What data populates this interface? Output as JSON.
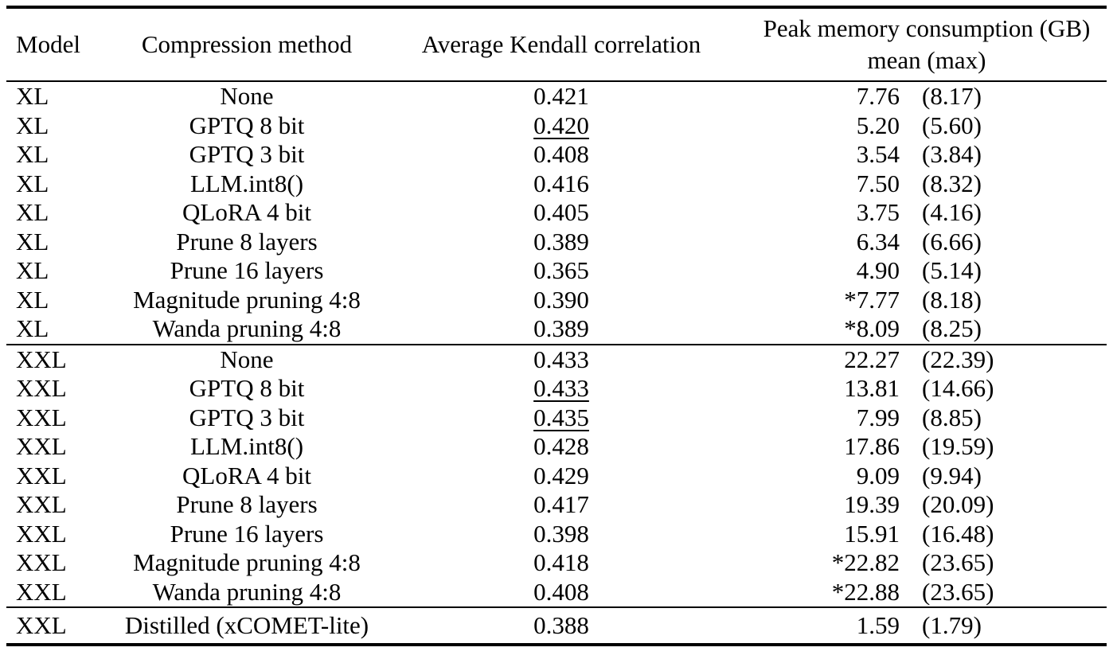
{
  "colors": {
    "text": "#000000",
    "background": "#ffffff",
    "rule": "#000000"
  },
  "table": {
    "headers": {
      "model": "Model",
      "method": "Compression method",
      "kendall": "Average Kendall correlation",
      "memory_line1": "Peak memory consumption (GB)",
      "memory_line2": "mean (max)"
    },
    "sections": [
      {
        "name": "xl",
        "rows": [
          {
            "model": "XL",
            "method": "None",
            "kendall": "0.421",
            "kendall_underlined": false,
            "mem_mean": "7.76",
            "mem_max": "(8.17)"
          },
          {
            "model": "XL",
            "method": "GPTQ 8 bit",
            "kendall": "0.420",
            "kendall_underlined": true,
            "mem_mean": "5.20",
            "mem_max": "(5.60)"
          },
          {
            "model": "XL",
            "method": "GPTQ 3 bit",
            "kendall": "0.408",
            "kendall_underlined": false,
            "mem_mean": "3.54",
            "mem_max": "(3.84)"
          },
          {
            "model": "XL",
            "method": "LLM.int8()",
            "kendall": "0.416",
            "kendall_underlined": false,
            "mem_mean": "7.50",
            "mem_max": "(8.32)"
          },
          {
            "model": "XL",
            "method": "QLoRA 4 bit",
            "kendall": "0.405",
            "kendall_underlined": false,
            "mem_mean": "3.75",
            "mem_max": "(4.16)"
          },
          {
            "model": "XL",
            "method": "Prune 8 layers",
            "kendall": "0.389",
            "kendall_underlined": false,
            "mem_mean": "6.34",
            "mem_max": "(6.66)"
          },
          {
            "model": "XL",
            "method": "Prune 16 layers",
            "kendall": "0.365",
            "kendall_underlined": false,
            "mem_mean": "4.90",
            "mem_max": "(5.14)"
          },
          {
            "model": "XL",
            "method": "Magnitude pruning 4:8",
            "kendall": "0.390",
            "kendall_underlined": false,
            "mem_mean": "*7.77",
            "mem_max": "(8.18)"
          },
          {
            "model": "XL",
            "method": "Wanda pruning 4:8",
            "kendall": "0.389",
            "kendall_underlined": false,
            "mem_mean": "*8.09",
            "mem_max": "(8.25)"
          }
        ]
      },
      {
        "name": "xxl",
        "rows": [
          {
            "model": "XXL",
            "method": "None",
            "kendall": "0.433",
            "kendall_underlined": false,
            "mem_mean": "22.27",
            "mem_max": "(22.39)"
          },
          {
            "model": "XXL",
            "method": "GPTQ 8 bit",
            "kendall": "0.433",
            "kendall_underlined": true,
            "mem_mean": "13.81",
            "mem_max": "(14.66)"
          },
          {
            "model": "XXL",
            "method": "GPTQ 3 bit",
            "kendall": "0.435",
            "kendall_underlined": true,
            "mem_mean": "7.99",
            "mem_max": "(8.85)"
          },
          {
            "model": "XXL",
            "method": "LLM.int8()",
            "kendall": "0.428",
            "kendall_underlined": false,
            "mem_mean": "17.86",
            "mem_max": "(19.59)"
          },
          {
            "model": "XXL",
            "method": "QLoRA 4 bit",
            "kendall": "0.429",
            "kendall_underlined": false,
            "mem_mean": "9.09",
            "mem_max": "(9.94)"
          },
          {
            "model": "XXL",
            "method": "Prune 8 layers",
            "kendall": "0.417",
            "kendall_underlined": false,
            "mem_mean": "19.39",
            "mem_max": "(20.09)"
          },
          {
            "model": "XXL",
            "method": "Prune 16 layers",
            "kendall": "0.398",
            "kendall_underlined": false,
            "mem_mean": "15.91",
            "mem_max": "(16.48)"
          },
          {
            "model": "XXL",
            "method": "Magnitude pruning 4:8",
            "kendall": "0.418",
            "kendall_underlined": false,
            "mem_mean": "*22.82",
            "mem_max": "(23.65)"
          },
          {
            "model": "XXL",
            "method": "Wanda pruning 4:8",
            "kendall": "0.408",
            "kendall_underlined": false,
            "mem_mean": "*22.88",
            "mem_max": "(23.65)"
          }
        ]
      },
      {
        "name": "distilled",
        "rows": [
          {
            "model": "XXL",
            "method": "Distilled (xCOMET-lite)",
            "kendall": "0.388",
            "kendall_underlined": false,
            "mem_mean": "1.59",
            "mem_max": "(1.79)"
          }
        ]
      }
    ]
  }
}
